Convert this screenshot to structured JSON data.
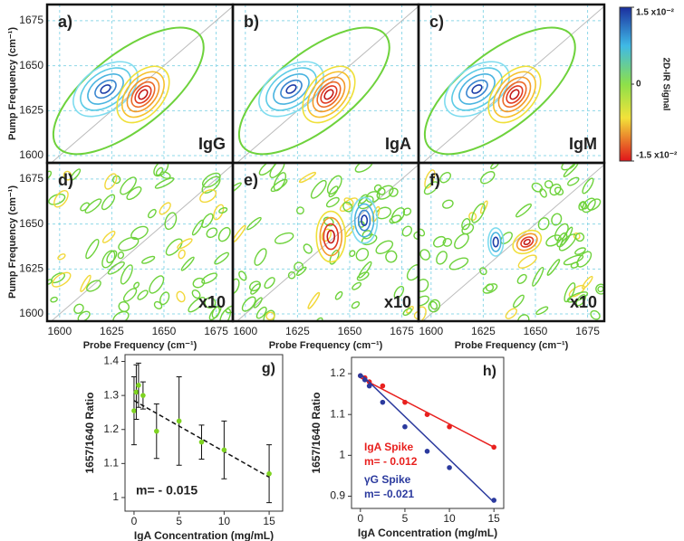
{
  "chart_data": [
    {
      "type": "contour-grid",
      "xlabel": "Probe Frequency (cm⁻¹)",
      "ylabel": "Pump Frequency (cm⁻¹)",
      "xlim": [
        1594,
        1683
      ],
      "ylim": [
        1596,
        1684
      ],
      "xticks": [
        1600,
        1625,
        1650,
        1675
      ],
      "yticks": [
        1600,
        1625,
        1650,
        1675
      ],
      "grid": true,
      "panels": [
        {
          "label": "a)",
          "annotation": "IgG"
        },
        {
          "label": "b)",
          "annotation": "IgA"
        },
        {
          "label": "c)",
          "annotation": "IgM"
        },
        {
          "label": "d)",
          "annotation": "x10"
        },
        {
          "label": "e)",
          "annotation": "x10"
        },
        {
          "label": "f)",
          "annotation": "x10"
        }
      ],
      "colorbar": {
        "title": "2D-IR Signal",
        "lim": [
          -0.015,
          0.015
        ],
        "ticks": [
          {
            "value": 0.015,
            "label": "1.5 x10⁻²"
          },
          0,
          {
            "value": -0.015,
            "label": "-1.5 x10⁻²"
          }
        ]
      }
    },
    {
      "type": "errorbar",
      "label": "g)",
      "annotation": "m= - 0.015",
      "xlabel": "IgA Concentration (mg/mL)",
      "ylabel": "1657/1640 Ratio",
      "xlim": [
        -1,
        16.5
      ],
      "ylim": [
        0.96,
        1.42
      ],
      "xticks": [
        0,
        5,
        10,
        15
      ],
      "yticks": [
        1,
        1.1,
        1.2,
        1.3,
        1.4
      ],
      "x": [
        0,
        0.25,
        0.5,
        1,
        2.5,
        5,
        7.5,
        10,
        15
      ],
      "values": [
        1.255,
        1.31,
        1.33,
        1.3,
        1.195,
        1.225,
        1.163,
        1.14,
        1.07
      ],
      "errors": [
        0.1,
        0.08,
        0.065,
        0.04,
        0.08,
        0.13,
        0.05,
        0.085,
        0.085
      ],
      "color": "#7ed321",
      "fit": {
        "x": [
          0,
          15
        ],
        "y": [
          1.285,
          1.06
        ]
      }
    },
    {
      "type": "scatter",
      "label": "h)",
      "xlabel": "IgA Concentration (mg/mL)",
      "ylabel": "1657/1640 Ratio",
      "xlim": [
        -1,
        16.1
      ],
      "ylim": [
        0.87,
        1.24
      ],
      "xticks": [
        0,
        5,
        10,
        15
      ],
      "yticks": [
        0.9,
        1,
        1.1,
        1.2
      ],
      "series": [
        {
          "name": "IgA Spike",
          "annotation": "m= - 0.012",
          "color": "#e8201e",
          "x": [
            0,
            0.5,
            1,
            2.5,
            5,
            7.5,
            10,
            15
          ],
          "values": [
            1.195,
            1.19,
            1.18,
            1.17,
            1.13,
            1.1,
            1.07,
            1.02
          ],
          "fit": {
            "x": [
              0,
              15
            ],
            "y": [
              1.19,
              1.02
            ]
          }
        },
        {
          "name": "γG Spike",
          "annotation": "m= -0.021",
          "color": "#2b3a9e",
          "x": [
            0,
            0.5,
            1,
            2.5,
            5,
            7.5,
            10,
            15
          ],
          "values": [
            1.195,
            1.185,
            1.17,
            1.13,
            1.07,
            1.01,
            0.97,
            0.89
          ],
          "fit": {
            "x": [
              0,
              15
            ],
            "y": [
              1.2,
              0.885
            ]
          }
        }
      ]
    }
  ]
}
